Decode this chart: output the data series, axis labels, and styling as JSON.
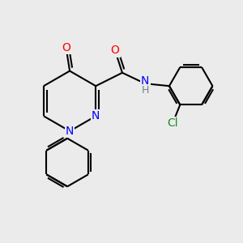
{
  "bg_color": "#EBEBEB",
  "bond_color": "#000000",
  "bond_width": 1.5,
  "atom_colors": {
    "O": "#FF0000",
    "N": "#0000FF",
    "Cl": "#228B22",
    "H": "#708090"
  },
  "font_size": 10,
  "figsize": [
    3.0,
    3.0
  ],
  "dpi": 100
}
